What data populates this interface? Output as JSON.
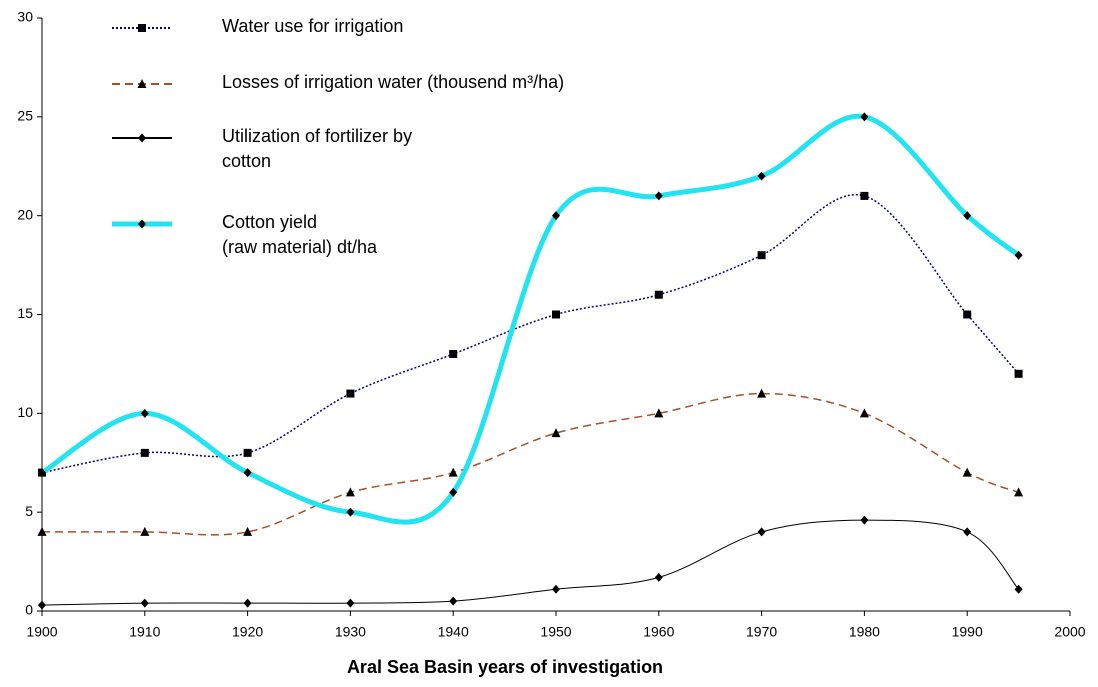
{
  "chart_data": {
    "type": "line",
    "x_label": "Aral Sea Basin years of investigation",
    "x": [
      1900,
      1910,
      1920,
      1930,
      1940,
      1950,
      1960,
      1970,
      1980,
      1990,
      1995
    ],
    "xlim": [
      1900,
      2000
    ],
    "xticks": [
      1900,
      1910,
      1920,
      1930,
      1940,
      1950,
      1960,
      1970,
      1980,
      1990,
      2000
    ],
    "ylim": [
      0,
      30
    ],
    "yticks": [
      0,
      5,
      10,
      15,
      20,
      25,
      30
    ],
    "smooth": true,
    "series": [
      {
        "name": "Water use  for irrigation",
        "color": "#000080",
        "dash": "dotted",
        "width": 1.5,
        "marker": "square",
        "values": [
          7,
          8,
          8,
          11,
          13,
          15,
          16,
          18,
          21,
          15,
          12
        ]
      },
      {
        "name": "Losses of irrigation water (thousend m³/ha)",
        "color": "#a0522d",
        "dash": "dashed",
        "width": 1.5,
        "marker": "triangle",
        "values": [
          4,
          4,
          4,
          6,
          7,
          9,
          10,
          11,
          10,
          7,
          6
        ]
      },
      {
        "name": "Utilization of fortilizer by\ncotton",
        "color": "#000000",
        "dash": "solid",
        "width": 1,
        "marker": "diamond",
        "values": [
          0.3,
          0.4,
          0.4,
          0.4,
          0.5,
          1.1,
          1.7,
          4,
          4.6,
          4,
          1.1
        ]
      },
      {
        "name": "Cotton yield\n(raw material) dt/ha",
        "color": "#22e4f0",
        "dash": "solid",
        "width": 5,
        "marker": "diamond",
        "values": [
          7,
          10,
          7,
          5,
          6,
          20,
          21,
          22,
          25,
          20,
          18
        ]
      }
    ]
  }
}
